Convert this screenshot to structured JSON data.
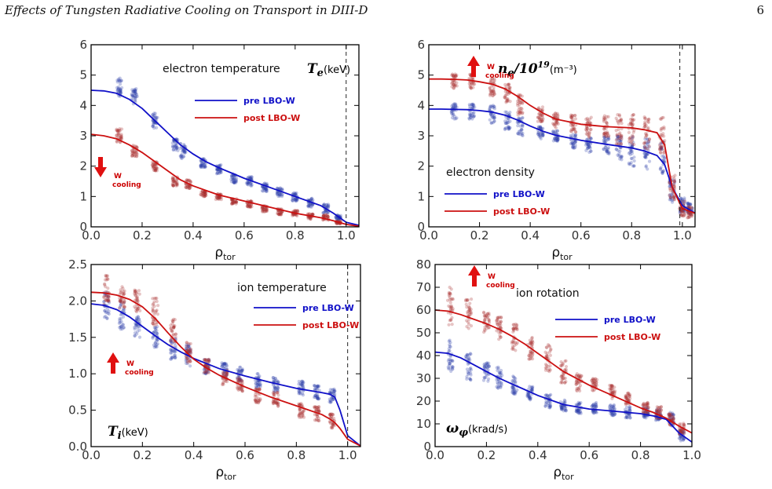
{
  "header": {
    "title": "Effects of Tungsten Radiative Cooling on Transport in DIII-D",
    "page_number": "6"
  },
  "colors": {
    "pre": "#1010c8",
    "post": "#cc1010",
    "pre_pts": "#2c3ca8",
    "post_pts": "#a83030",
    "arrow": "#e01010"
  },
  "chart_data": [
    {
      "type": "scatter",
      "id": "te",
      "annotation": "electron temperature",
      "quantity": "T",
      "quantity_sub": "e",
      "unit": "(keV)",
      "xlabel": "ρ",
      "xlabel_sub": "tor",
      "xlim": [
        0,
        1.05
      ],
      "ylim": [
        0,
        6
      ],
      "xticks": [
        "0.0",
        "0.2",
        "0.4",
        "0.6",
        "0.8",
        "1.0"
      ],
      "yticks": [
        "0",
        "1",
        "2",
        "3",
        "4",
        "5",
        "6"
      ],
      "vline": 1.0,
      "legend": [
        "pre LBO-W",
        "post LBO-W"
      ],
      "cooling": {
        "text1": "W",
        "text2": "cooling",
        "direction": "down"
      },
      "series": [
        {
          "name": "pre LBO-W",
          "x": [
            0,
            0.05,
            0.1,
            0.15,
            0.2,
            0.25,
            0.3,
            0.35,
            0.4,
            0.45,
            0.5,
            0.6,
            0.7,
            0.8,
            0.9,
            0.95,
            1.0,
            1.05
          ],
          "y": [
            4.5,
            4.48,
            4.4,
            4.2,
            3.9,
            3.5,
            3.1,
            2.7,
            2.4,
            2.15,
            1.95,
            1.6,
            1.3,
            1.0,
            0.7,
            0.45,
            0.15,
            0.05
          ]
        },
        {
          "name": "post LBO-W",
          "x": [
            0,
            0.05,
            0.1,
            0.15,
            0.2,
            0.25,
            0.3,
            0.35,
            0.4,
            0.45,
            0.5,
            0.6,
            0.7,
            0.8,
            0.9,
            0.95,
            1.0,
            1.05
          ],
          "y": [
            3.05,
            3.0,
            2.9,
            2.7,
            2.45,
            2.15,
            1.85,
            1.55,
            1.35,
            1.2,
            1.05,
            0.85,
            0.65,
            0.45,
            0.3,
            0.2,
            0.08,
            0.02
          ]
        }
      ],
      "clusters_pre": [
        [
          0.11,
          4.6,
          0.6
        ],
        [
          0.17,
          4.3,
          0.5
        ],
        [
          0.25,
          3.5,
          0.5
        ],
        [
          0.33,
          2.7,
          0.4
        ],
        [
          0.36,
          2.5,
          0.5
        ],
        [
          0.44,
          2.1,
          0.3
        ],
        [
          0.5,
          1.9,
          0.3
        ],
        [
          0.56,
          1.6,
          0.3
        ],
        [
          0.62,
          1.5,
          0.3
        ],
        [
          0.68,
          1.3,
          0.3
        ],
        [
          0.74,
          1.15,
          0.3
        ],
        [
          0.8,
          1.0,
          0.3
        ],
        [
          0.86,
          0.8,
          0.3
        ],
        [
          0.92,
          0.6,
          0.3
        ],
        [
          0.97,
          0.3,
          0.2
        ]
      ],
      "clusters_post": [
        [
          0.11,
          3.0,
          0.5
        ],
        [
          0.17,
          2.5,
          0.4
        ],
        [
          0.25,
          2.0,
          0.3
        ],
        [
          0.33,
          1.5,
          0.3
        ],
        [
          0.38,
          1.4,
          0.3
        ],
        [
          0.44,
          1.1,
          0.2
        ],
        [
          0.5,
          1.0,
          0.2
        ],
        [
          0.56,
          0.85,
          0.2
        ],
        [
          0.62,
          0.75,
          0.2
        ],
        [
          0.68,
          0.6,
          0.2
        ],
        [
          0.74,
          0.5,
          0.2
        ],
        [
          0.8,
          0.45,
          0.2
        ],
        [
          0.86,
          0.35,
          0.2
        ],
        [
          0.92,
          0.3,
          0.2
        ],
        [
          0.97,
          0.15,
          0.1
        ]
      ]
    },
    {
      "type": "scatter",
      "id": "ne",
      "annotation": "electron density",
      "quantity": "n",
      "quantity_sub": "e",
      "quantity_tail": "/10",
      "quantity_sup": "19",
      "unit": "(m⁻³)",
      "xlabel": "ρ",
      "xlabel_sub": "tor",
      "xlim": [
        0,
        1.05
      ],
      "ylim": [
        0,
        6
      ],
      "xticks": [
        "0.0",
        "0.2",
        "0.4",
        "0.6",
        "0.8",
        "1.0"
      ],
      "yticks": [
        "0",
        "1",
        "2",
        "3",
        "4",
        "5",
        "6"
      ],
      "vline": 0.99,
      "legend": [
        "pre LBO-W",
        "post LBO-W"
      ],
      "cooling": {
        "text1": "W",
        "text2": "cooling",
        "direction": "up"
      },
      "series": [
        {
          "name": "pre LBO-W",
          "x": [
            0,
            0.05,
            0.1,
            0.15,
            0.2,
            0.25,
            0.3,
            0.35,
            0.4,
            0.45,
            0.5,
            0.6,
            0.7,
            0.8,
            0.85,
            0.9,
            0.93,
            0.96,
            1.0,
            1.05
          ],
          "y": [
            3.88,
            3.88,
            3.87,
            3.86,
            3.83,
            3.78,
            3.68,
            3.52,
            3.32,
            3.15,
            3.02,
            2.85,
            2.72,
            2.6,
            2.5,
            2.35,
            2.05,
            1.3,
            0.7,
            0.45
          ]
        },
        {
          "name": "post LBO-W",
          "x": [
            0,
            0.05,
            0.1,
            0.15,
            0.2,
            0.25,
            0.3,
            0.35,
            0.4,
            0.45,
            0.5,
            0.6,
            0.7,
            0.8,
            0.85,
            0.9,
            0.93,
            0.96,
            1.0,
            1.05
          ],
          "y": [
            4.87,
            4.87,
            4.86,
            4.84,
            4.78,
            4.7,
            4.55,
            4.3,
            4.0,
            3.75,
            3.55,
            3.38,
            3.3,
            3.26,
            3.2,
            3.1,
            2.7,
            1.3,
            0.6,
            0.45
          ]
        }
      ],
      "clusters_pre": [
        [
          0.1,
          3.8,
          0.5
        ],
        [
          0.17,
          3.8,
          0.5
        ],
        [
          0.25,
          3.7,
          0.6
        ],
        [
          0.31,
          3.5,
          0.6
        ],
        [
          0.36,
          3.3,
          0.6
        ],
        [
          0.44,
          3.1,
          0.4
        ],
        [
          0.5,
          3.0,
          0.4
        ],
        [
          0.57,
          2.8,
          0.5
        ],
        [
          0.63,
          2.7,
          0.5
        ],
        [
          0.7,
          2.7,
          0.6
        ],
        [
          0.75,
          2.6,
          0.8
        ],
        [
          0.8,
          2.5,
          1.0
        ],
        [
          0.86,
          2.4,
          1.0
        ],
        [
          0.92,
          2.3,
          1.1
        ],
        [
          0.96,
          1.2,
          0.8
        ],
        [
          1.0,
          0.7,
          0.5
        ],
        [
          1.03,
          0.6,
          0.4
        ]
      ],
      "clusters_post": [
        [
          0.1,
          4.8,
          0.5
        ],
        [
          0.17,
          4.8,
          0.5
        ],
        [
          0.25,
          4.6,
          0.6
        ],
        [
          0.31,
          4.4,
          0.6
        ],
        [
          0.36,
          4.0,
          0.7
        ],
        [
          0.44,
          3.7,
          0.5
        ],
        [
          0.5,
          3.5,
          0.5
        ],
        [
          0.57,
          3.4,
          0.6
        ],
        [
          0.63,
          3.3,
          0.7
        ],
        [
          0.7,
          3.3,
          0.8
        ],
        [
          0.75,
          3.2,
          1.0
        ],
        [
          0.8,
          3.2,
          1.1
        ],
        [
          0.86,
          3.1,
          1.1
        ],
        [
          0.92,
          3.0,
          1.2
        ],
        [
          0.96,
          1.3,
          0.9
        ],
        [
          1.0,
          0.6,
          0.5
        ],
        [
          1.03,
          0.5,
          0.4
        ]
      ]
    },
    {
      "type": "scatter",
      "id": "ti",
      "annotation": "ion temperature",
      "quantity": "T",
      "quantity_sub": "i",
      "unit": "(keV)",
      "xlabel": "ρ",
      "xlabel_sub": "tor",
      "xlim": [
        0,
        1.05
      ],
      "ylim": [
        0,
        2.5
      ],
      "xticks": [
        "0.0",
        "0.2",
        "0.4",
        "0.6",
        "0.8",
        "1.0"
      ],
      "yticks": [
        "0.0",
        "0.5",
        "1.0",
        "1.5",
        "2.0",
        "2.5"
      ],
      "vline": 1.0,
      "legend": [
        "pre LBO-W",
        "post LBO-W"
      ],
      "cooling": {
        "text1": "W",
        "text2": "cooling",
        "direction": "up"
      },
      "series": [
        {
          "name": "pre LBO-W",
          "x": [
            0,
            0.05,
            0.1,
            0.15,
            0.2,
            0.25,
            0.3,
            0.35,
            0.4,
            0.45,
            0.5,
            0.6,
            0.7,
            0.8,
            0.85,
            0.9,
            0.93,
            0.95,
            0.97,
            1.0,
            1.05
          ],
          "y": [
            1.96,
            1.94,
            1.88,
            1.78,
            1.65,
            1.52,
            1.4,
            1.3,
            1.21,
            1.14,
            1.07,
            0.97,
            0.88,
            0.8,
            0.77,
            0.74,
            0.72,
            0.68,
            0.5,
            0.15,
            0.01
          ]
        },
        {
          "name": "post LBO-W",
          "x": [
            0,
            0.05,
            0.1,
            0.15,
            0.2,
            0.25,
            0.3,
            0.35,
            0.4,
            0.45,
            0.5,
            0.6,
            0.7,
            0.8,
            0.85,
            0.9,
            0.93,
            0.95,
            0.97,
            1.0,
            1.05
          ],
          "y": [
            2.12,
            2.11,
            2.08,
            2.02,
            1.92,
            1.76,
            1.56,
            1.37,
            1.2,
            1.08,
            0.98,
            0.82,
            0.68,
            0.56,
            0.5,
            0.44,
            0.38,
            0.33,
            0.25,
            0.1,
            0.01
          ]
        }
      ],
      "clusters_pre": [
        [
          0.06,
          1.95,
          0.4
        ],
        [
          0.12,
          1.8,
          0.4
        ],
        [
          0.18,
          1.65,
          0.3
        ],
        [
          0.25,
          1.5,
          0.3
        ],
        [
          0.32,
          1.35,
          0.3
        ],
        [
          0.38,
          1.25,
          0.3
        ],
        [
          0.45,
          1.1,
          0.2
        ],
        [
          0.52,
          1.05,
          0.2
        ],
        [
          0.58,
          1.0,
          0.2
        ],
        [
          0.65,
          0.9,
          0.2
        ],
        [
          0.72,
          0.85,
          0.2
        ],
        [
          0.82,
          0.8,
          0.2
        ],
        [
          0.88,
          0.75,
          0.2
        ],
        [
          0.94,
          0.7,
          0.2
        ]
      ],
      "clusters_post": [
        [
          0.06,
          2.15,
          0.4
        ],
        [
          0.12,
          2.05,
          0.3
        ],
        [
          0.18,
          2.0,
          0.3
        ],
        [
          0.25,
          1.85,
          0.4
        ],
        [
          0.32,
          1.55,
          0.4
        ],
        [
          0.38,
          1.3,
          0.3
        ],
        [
          0.45,
          1.1,
          0.2
        ],
        [
          0.52,
          0.95,
          0.2
        ],
        [
          0.58,
          0.85,
          0.2
        ],
        [
          0.65,
          0.7,
          0.2
        ],
        [
          0.72,
          0.65,
          0.2
        ],
        [
          0.82,
          0.5,
          0.2
        ],
        [
          0.88,
          0.45,
          0.2
        ],
        [
          0.94,
          0.35,
          0.2
        ]
      ]
    },
    {
      "type": "scatter",
      "id": "vrot",
      "annotation": "ion rotation",
      "quantity": "ω",
      "quantity_sub": "φ",
      "unit": "(krad/s)",
      "xlabel": "ρ",
      "xlabel_sub": "tor",
      "xlim": [
        0,
        1.0
      ],
      "ylim": [
        0,
        80
      ],
      "xticks": [
        "0.0",
        "0.2",
        "0.4",
        "0.6",
        "0.8",
        "1.0"
      ],
      "yticks": [
        "0",
        "10",
        "20",
        "30",
        "40",
        "50",
        "60",
        "70",
        "80"
      ],
      "vline": null,
      "legend": [
        "pre LBO-W",
        "post LBO-W"
      ],
      "cooling": {
        "text1": "W",
        "text2": "cooling",
        "direction": "up"
      },
      "series": [
        {
          "name": "pre LBO-W",
          "x": [
            0,
            0.05,
            0.1,
            0.15,
            0.2,
            0.25,
            0.3,
            0.35,
            0.4,
            0.45,
            0.5,
            0.6,
            0.7,
            0.8,
            0.85,
            0.9,
            0.95,
            1.0
          ],
          "y": [
            41.5,
            41,
            39,
            36,
            33,
            30,
            27.5,
            25,
            22.5,
            20.5,
            18.5,
            16.5,
            15.5,
            14.5,
            13.5,
            12,
            6,
            2
          ]
        },
        {
          "name": "post LBO-W",
          "x": [
            0,
            0.05,
            0.1,
            0.15,
            0.2,
            0.25,
            0.3,
            0.35,
            0.4,
            0.45,
            0.5,
            0.6,
            0.7,
            0.8,
            0.85,
            0.9,
            0.95,
            1.0
          ],
          "y": [
            60,
            59.5,
            58,
            56,
            54,
            51.5,
            48.5,
            45,
            41,
            37,
            33,
            27,
            22,
            17,
            15,
            12.5,
            9,
            6
          ]
        }
      ],
      "clusters_pre": [
        [
          0.06,
          40,
          14
        ],
        [
          0.13,
          35,
          12
        ],
        [
          0.2,
          33,
          10
        ],
        [
          0.25,
          30,
          10
        ],
        [
          0.31,
          27,
          8
        ],
        [
          0.37,
          24,
          7
        ],
        [
          0.44,
          20,
          6
        ],
        [
          0.5,
          18,
          5
        ],
        [
          0.56,
          17,
          5
        ],
        [
          0.62,
          17,
          5
        ],
        [
          0.69,
          16,
          5
        ],
        [
          0.75,
          15,
          5
        ],
        [
          0.82,
          15,
          5
        ],
        [
          0.87,
          14,
          5
        ],
        [
          0.92,
          12,
          6
        ],
        [
          0.96,
          5,
          5
        ]
      ],
      "clusters_post": [
        [
          0.06,
          62,
          18
        ],
        [
          0.13,
          58,
          14
        ],
        [
          0.2,
          55,
          10
        ],
        [
          0.25,
          52,
          10
        ],
        [
          0.31,
          48,
          12
        ],
        [
          0.37,
          43,
          10
        ],
        [
          0.44,
          39,
          12
        ],
        [
          0.5,
          33,
          10
        ],
        [
          0.56,
          28,
          8
        ],
        [
          0.62,
          27,
          6
        ],
        [
          0.69,
          24,
          6
        ],
        [
          0.75,
          21,
          5
        ],
        [
          0.82,
          17,
          5
        ],
        [
          0.87,
          15,
          5
        ],
        [
          0.92,
          12,
          5
        ],
        [
          0.96,
          8,
          5
        ]
      ]
    }
  ]
}
